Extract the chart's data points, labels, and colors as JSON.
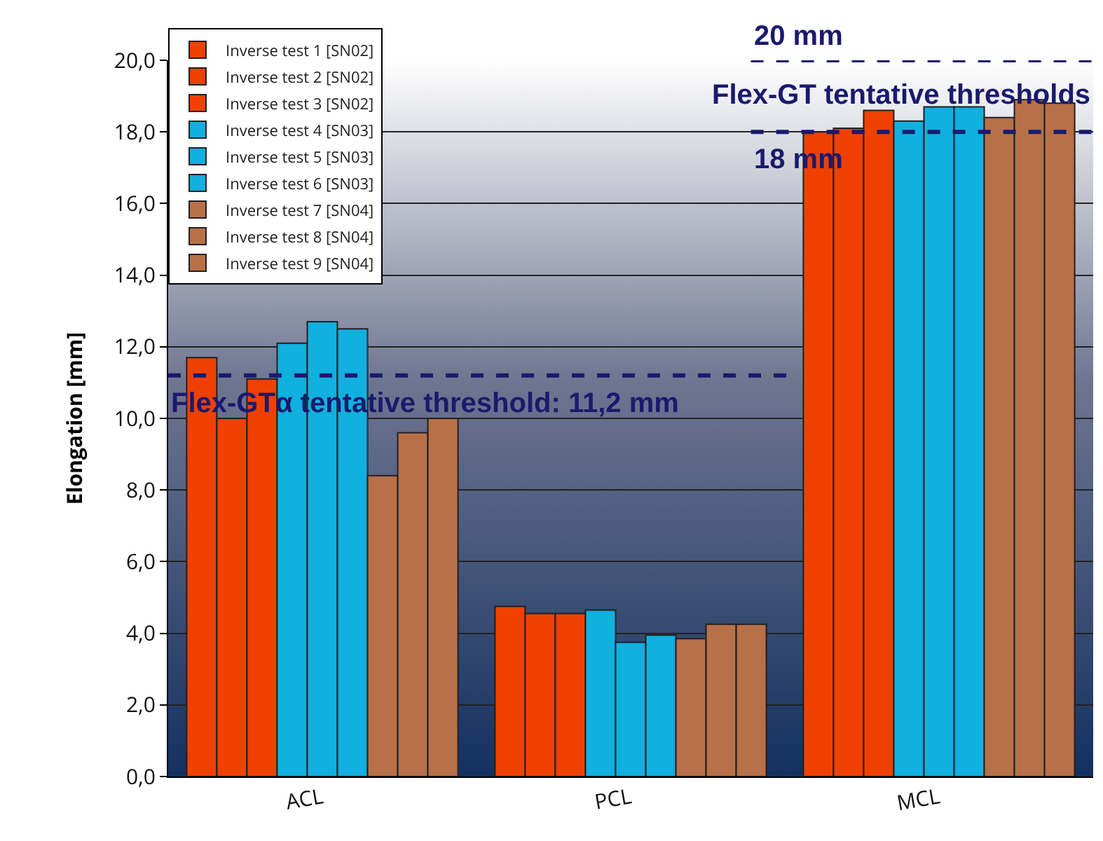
{
  "chart_data": {
    "type": "bar",
    "ylabel": "Elongation [mm]",
    "categories": [
      "ACL",
      "PCL",
      "MCL"
    ],
    "series": [
      {
        "name": "Inverse test 1 [SN02]",
        "color": "#f04000",
        "values": [
          11.7,
          4.75,
          18.0
        ]
      },
      {
        "name": "Inverse test 2 [SN02]",
        "color": "#f04000",
        "values": [
          10.0,
          4.55,
          18.1
        ]
      },
      {
        "name": "Inverse test 3 [SN02]",
        "color": "#f04000",
        "values": [
          11.1,
          4.55,
          18.6
        ]
      },
      {
        "name": "Inverse test 4 [SN03]",
        "color": "#10b0e0",
        "values": [
          12.1,
          4.65,
          18.3
        ]
      },
      {
        "name": "Inverse test 5 [SN03]",
        "color": "#10b0e0",
        "values": [
          12.7,
          3.75,
          18.7
        ]
      },
      {
        "name": "Inverse test 6 [SN03]",
        "color": "#10b0e0",
        "values": [
          12.5,
          3.95,
          18.7
        ]
      },
      {
        "name": "Inverse test 7 [SN04]",
        "color": "#b87048",
        "values": [
          8.4,
          3.85,
          18.4
        ]
      },
      {
        "name": "Inverse test 8 [SN04]",
        "color": "#b87048",
        "values": [
          9.6,
          4.25,
          18.9
        ]
      },
      {
        "name": "Inverse test 9 [SN04]",
        "color": "#b87048",
        "values": [
          10.0,
          4.25,
          18.8
        ]
      }
    ],
    "ylim": [
      0,
      20
    ],
    "yticks": [
      {
        "value": 0,
        "label": "0,0"
      },
      {
        "value": 2,
        "label": "2,0"
      },
      {
        "value": 4,
        "label": "4,0"
      },
      {
        "value": 6,
        "label": "6,0"
      },
      {
        "value": 8,
        "label": "8,0"
      },
      {
        "value": 10,
        "label": "10,0"
      },
      {
        "value": 12,
        "label": "12,0"
      },
      {
        "value": 14,
        "label": "14,0"
      },
      {
        "value": 16,
        "label": "16,0"
      },
      {
        "value": 18,
        "label": "18,0"
      },
      {
        "value": 20,
        "label": "20,0"
      }
    ],
    "ref_lines": [
      {
        "axis": "y",
        "value": 11.2,
        "label": "Flex-GTα tentative threshold: 11,2 mm",
        "color": "#1a1a6e",
        "line_style": "dashed"
      },
      {
        "axis": "y",
        "value": 20,
        "label": "20 mm",
        "color": "#1a1a6e",
        "line_style": "dashed"
      },
      {
        "axis": "y",
        "value": 18,
        "label": "18 mm",
        "color": "#1a1a6e",
        "line_style": "dashed"
      }
    ],
    "annotations": [
      "Flex-GT tentative thresholds"
    ],
    "grid": "y",
    "legend": "top left"
  }
}
